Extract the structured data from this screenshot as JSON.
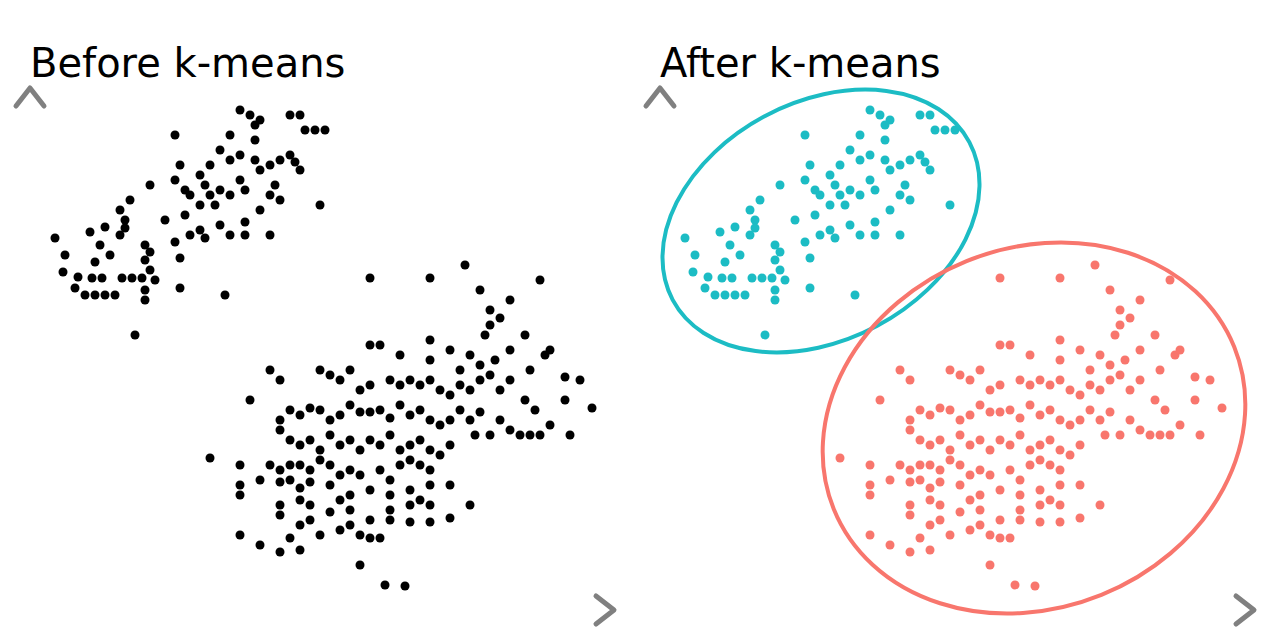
{
  "chart_data": [
    {
      "type": "scatter",
      "title": "Before k-means",
      "xlim": [
        0,
        58
      ],
      "ylim": [
        0,
        52
      ],
      "tick_labels": false,
      "series": [
        {
          "color": "#000000",
          "x": [
            2.5,
            3.5,
            3.3,
            4.5,
            4.8,
            5.5,
            6.5,
            7.5,
            8.5,
            6.2,
            7.2,
            9.2,
            10.2,
            11.2,
            6.5,
            8,
            7,
            6,
            7.5,
            9,
            9.5,
            9,
            10,
            9.5,
            11.5,
            11.5,
            12,
            11.5,
            11.5,
            12,
            12.5,
            10.5,
            13.5,
            14.5,
            15,
            15,
            12,
            14.5,
            15.5,
            16,
            17,
            15.5,
            16,
            17,
            14.5,
            15,
            17,
            17.5,
            18,
            18.5,
            18,
            19,
            20,
            21,
            21.5,
            20,
            19,
            17.5,
            19.5,
            19,
            20,
            21,
            20,
            21,
            22,
            23,
            22.5,
            22.5,
            23,
            21.5,
            24,
            23,
            24,
            25,
            24.5,
            24,
            21.5,
            26,
            26.5,
            27,
            26,
            27,
            27.5,
            28.5,
            29.5,
            29,
            22.5,
            25,
            34,
            40,
            43.5,
            45,
            48,
            51,
            46,
            46,
            47,
            45.5,
            34,
            35,
            37,
            40,
            40,
            42,
            44,
            43,
            45,
            46.5,
            48,
            51.5,
            49.5,
            52,
            24,
            25,
            29,
            30,
            31,
            32,
            33,
            34,
            36,
            37,
            38,
            39,
            40,
            41,
            42,
            43,
            44,
            45,
            46,
            47,
            48,
            50,
            53.5,
            55,
            56.2,
            53.5,
            49.5,
            22,
            25,
            26,
            27,
            28,
            29,
            30,
            31,
            32,
            33,
            34,
            35,
            36,
            37,
            38,
            39,
            40,
            41,
            42,
            43,
            44,
            45,
            46,
            48,
            49,
            50,
            51,
            54,
            44.5,
            47,
            50.5,
            52,
            25,
            26,
            27,
            28,
            29,
            30,
            31,
            32,
            33,
            34,
            35,
            36,
            37,
            38,
            39,
            40,
            41,
            42,
            18,
            21,
            24,
            25,
            26,
            27,
            28,
            29,
            30,
            31,
            32,
            33,
            35,
            36,
            37,
            38,
            39,
            40,
            21,
            23,
            25,
            26,
            27,
            28,
            30,
            32,
            34,
            36,
            38,
            39,
            40,
            42,
            21,
            25,
            27,
            28,
            31,
            32,
            36,
            38,
            40,
            25,
            27,
            28,
            30,
            32,
            34,
            36,
            38,
            40,
            42,
            21,
            26,
            29,
            31,
            33,
            44,
            23,
            27,
            34,
            35,
            25,
            33,
            35.5,
            37.5
          ],
          "values": [
            37.2,
            35.5,
            33.8,
            32.2,
            33.3,
            31.5,
            31.5,
            31.5,
            31.5,
            33.2,
            33.2,
            33.2,
            33.2,
            33.2,
            34.8,
            35.5,
            36.5,
            37.8,
            38.3,
            37.5,
            39,
            40,
            41,
            38.2,
            36.5,
            35,
            34,
            32,
            31,
            35.8,
            33,
            27.5,
            39,
            36.8,
            35.2,
            32.2,
            42.5,
            43,
            42,
            41.5,
            40.5,
            39.5,
            37.5,
            38,
            47.5,
            44.5,
            43.5,
            42.5,
            41.5,
            40.5,
            44.5,
            42,
            41.5,
            43,
            37.5,
            37.5,
            38.5,
            37.2,
            31.5,
            46,
            45,
            45.5,
            47.5,
            50,
            49.5,
            49,
            48.5,
            45,
            44,
            42,
            41.5,
            40,
            44.5,
            45,
            42.5,
            37.5,
            38.8,
            45.5,
            44.8,
            44,
            49.5,
            49.5,
            48,
            48,
            48,
            40.5,
            47,
            41,
            33.2,
            33.2,
            34.5,
            32,
            31,
            33,
            30,
            28.5,
            29.2,
            27.5,
            26.5,
            26.5,
            25.5,
            27,
            25,
            26,
            25.5,
            24,
            24.5,
            25,
            26,
            25.5,
            27.5,
            26,
            24,
            23,
            24,
            23.5,
            23,
            24,
            22,
            22.5,
            23,
            22.5,
            23,
            22.5,
            23,
            22,
            21.5,
            22.5,
            22,
            23,
            23.5,
            22,
            23,
            24,
            23.3,
            23,
            20.2,
            21,
            21,
            21,
            19,
            20,
            19.5,
            20.2,
            20,
            19,
            19.5,
            20.5,
            19.8,
            19.8,
            20,
            19.2,
            20.5,
            19.5,
            20,
            19,
            18.5,
            19,
            20,
            19,
            19.8,
            17.5,
            18,
            17.5,
            17.5,
            17.5,
            17.5,
            17.5,
            19,
            20,
            18.5,
            18,
            17,
            16.5,
            17,
            16,
            17.5,
            16.5,
            17,
            16,
            17,
            16.5,
            17.5,
            16,
            16.5,
            17,
            16,
            15.5,
            16.5,
            15.2,
            14.5,
            14.5,
            14,
            14.5,
            14.5,
            14,
            15,
            14.5,
            13.5,
            14,
            13.5,
            14,
            13,
            14.5,
            15,
            14.5,
            14,
            12.5,
            13,
            12.8,
            13,
            12.2,
            12.8,
            12.5,
            11.5,
            12,
            11.5,
            12,
            11,
            12.5,
            12.5,
            11.5,
            10.5,
            11,
            10.5,
            11,
            10,
            10,
            10.5,
            10.5,
            9.5,
            8.5,
            9,
            9.8,
            8.5,
            9,
            9,
            8.8,
            8.8,
            9.2,
            7.5,
            7.2,
            7.5,
            8,
            7.5,
            10.5,
            6.5,
            6,
            7.2,
            7.2,
            5.8,
            4.5,
            2.5,
            2.4
          ]
        }
      ]
    },
    {
      "type": "scatter",
      "title": "After k-means",
      "xlim": [
        0,
        59
      ],
      "ylim": [
        0,
        52
      ],
      "tick_labels": false,
      "series": [
        {
          "color": "#1cbcc4",
          "x": [
            2.5,
            3.5,
            3.3,
            4.5,
            4.8,
            5.5,
            6.5,
            7.5,
            8.5,
            6.2,
            7.2,
            9.2,
            10.2,
            11.2,
            6.5,
            8,
            7,
            6,
            7.5,
            9,
            9.5,
            9,
            10,
            9.5,
            11.5,
            11.5,
            12,
            11.5,
            11.5,
            12,
            12.5,
            10.5,
            13.5,
            14.5,
            15,
            15,
            12,
            14.5,
            15.5,
            16,
            17,
            15.5,
            16,
            17,
            14.5,
            15,
            17,
            17.5,
            18,
            18.5,
            18,
            19,
            20,
            21,
            21.5,
            20,
            19,
            17.5,
            19.5,
            19,
            20,
            21,
            20,
            21,
            22,
            23,
            22.5,
            22.5,
            23,
            21.5,
            24,
            23,
            24,
            25,
            24.5,
            24,
            21.5,
            26,
            26.5,
            27,
            26,
            27,
            27.5,
            28.5,
            29.5,
            29,
            22.5,
            25
          ],
          "values": [
            37.2,
            35.5,
            33.8,
            32.2,
            33.3,
            31.5,
            31.5,
            31.5,
            31.5,
            33.2,
            33.2,
            33.2,
            33.2,
            33.2,
            34.8,
            35.5,
            36.5,
            37.8,
            38.3,
            37.5,
            39,
            40,
            41,
            38.2,
            36.5,
            35,
            34,
            32,
            31,
            35.8,
            33,
            27.5,
            39,
            36.8,
            35.2,
            32.2,
            42.5,
            43,
            42,
            41.5,
            40.5,
            39.5,
            37.5,
            38,
            47.5,
            44.5,
            43.5,
            42.5,
            41.5,
            40.5,
            44.5,
            42,
            41.5,
            43,
            37.5,
            37.5,
            38.5,
            37.2,
            31.5,
            46,
            45,
            45.5,
            47.5,
            50,
            49.5,
            49,
            48.5,
            45,
            44,
            42,
            41.5,
            40,
            44.5,
            45,
            42.5,
            37.5,
            38.8,
            45.5,
            44.8,
            44,
            49.5,
            49.5,
            48,
            48,
            48,
            40.5,
            47,
            41
          ]
        },
        {
          "color": "#f8766d",
          "x": [
            34,
            40,
            43.5,
            45,
            48,
            51,
            46,
            46,
            47,
            45.5,
            34,
            35,
            37,
            40,
            40,
            42,
            44,
            43,
            45,
            46.5,
            48,
            51.5,
            49.5,
            52,
            24,
            25,
            29,
            30,
            31,
            32,
            33,
            34,
            36,
            37,
            38,
            39,
            40,
            41,
            42,
            43,
            44,
            45,
            46,
            47,
            48,
            50,
            53.5,
            55,
            56.2,
            53.5,
            49.5,
            22,
            25,
            26,
            27,
            28,
            29,
            30,
            31,
            32,
            33,
            34,
            35,
            36,
            37,
            38,
            39,
            40,
            41,
            42,
            43,
            44,
            45,
            46,
            48,
            49,
            50,
            51,
            54,
            44.5,
            47,
            50.5,
            52,
            25,
            26,
            27,
            28,
            29,
            30,
            31,
            32,
            33,
            34,
            35,
            36,
            37,
            38,
            39,
            40,
            41,
            42,
            18,
            21,
            24,
            25,
            26,
            27,
            28,
            29,
            30,
            31,
            32,
            33,
            35,
            36,
            37,
            38,
            39,
            40,
            21,
            23,
            25,
            26,
            27,
            28,
            30,
            32,
            34,
            36,
            38,
            39,
            40,
            42,
            21,
            25,
            27,
            28,
            31,
            32,
            36,
            38,
            40,
            25,
            27,
            28,
            30,
            32,
            34,
            36,
            38,
            40,
            42,
            21,
            26,
            29,
            31,
            33,
            44,
            23,
            27,
            34,
            35,
            25,
            33,
            35.5,
            37.5
          ],
          "values": [
            33.2,
            33.2,
            34.5,
            32,
            31,
            33,
            30,
            28.5,
            29.2,
            27.5,
            26.5,
            26.5,
            25.5,
            27,
            25,
            26,
            25.5,
            24,
            24.5,
            25,
            26,
            25.5,
            27.5,
            26,
            24,
            23,
            24,
            23.5,
            23,
            24,
            22,
            22.5,
            23,
            22.5,
            23,
            22.5,
            23,
            22,
            21.5,
            22.5,
            22,
            23,
            23.5,
            22,
            23,
            24,
            23.3,
            23,
            20.2,
            21,
            21,
            21,
            19,
            20,
            19.5,
            20.2,
            20,
            19,
            19.5,
            20.5,
            19.8,
            19.8,
            20,
            19.2,
            20.5,
            19.5,
            20,
            19,
            18.5,
            19,
            20,
            19,
            19.8,
            17.5,
            18,
            17.5,
            17.5,
            17.5,
            17.5,
            17.5,
            19,
            20,
            18.5,
            18,
            17,
            16.5,
            17,
            16,
            17.5,
            16.5,
            17,
            16,
            17,
            16.5,
            17.5,
            16,
            16.5,
            17,
            16,
            15.5,
            16.5,
            15.2,
            14.5,
            14.5,
            14,
            14.5,
            14.5,
            14,
            15,
            14.5,
            13.5,
            14,
            13.5,
            14,
            13,
            14.5,
            15,
            14.5,
            14,
            12.5,
            13,
            12.8,
            13,
            12.2,
            12.8,
            12.5,
            11.5,
            12,
            11.5,
            12,
            11,
            12.5,
            12.5,
            11.5,
            10.5,
            11,
            10.5,
            11,
            10,
            10,
            10.5,
            10.5,
            9.5,
            8.5,
            9,
            9.8,
            8.5,
            9,
            9,
            8.8,
            8.8,
            9.2,
            7.5,
            7.2,
            7.5,
            8,
            7.5,
            10.5,
            6.5,
            6,
            7.2,
            7.2,
            5.8,
            4.5,
            2.5,
            2.4
          ]
        }
      ]
    }
  ]
}
